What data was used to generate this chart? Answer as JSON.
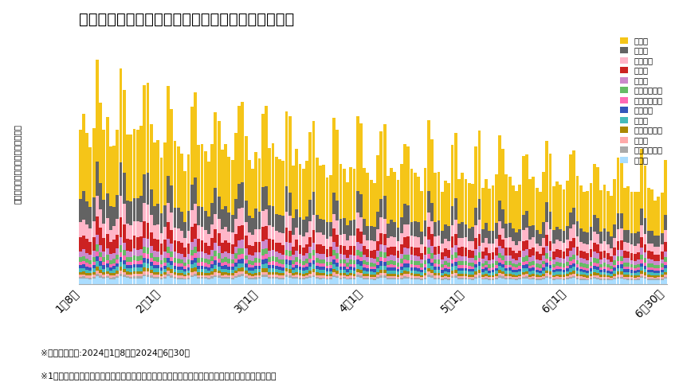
{
  "title": "輪島市・珠洲市居住推定者の石川県内の移動先推定",
  "ylabel": "石川県内市区町村別推定ユーザー数",
  "footnote1": "※集計対象期間:2024年1月8日〜2024年6月30日",
  "footnote2": "※1日の中で複数エリアに位置情報が存在する場合、滞在がもっとも長いエリアに割り振りを行った",
  "xtick_labels": [
    "1月8日",
    "2月1日",
    "3月1日",
    "4月1日",
    "5月1日",
    "6月1日",
    "6月30日"
  ],
  "xtick_positions": [
    0,
    24,
    53,
    84,
    114,
    144,
    173
  ],
  "series_names": [
    "金沢市",
    "白山市",
    "野々市市",
    "加賀市",
    "小松市",
    "河北郡津幡町",
    "鳳珠郡能登町",
    "かほく市",
    "七尾市",
    "河北郡内灘町",
    "能美市",
    "鳳珠郡穴水町",
    "その他"
  ],
  "series_colors": [
    "#F5C518",
    "#636363",
    "#FFB6C8",
    "#CC2222",
    "#CC88CC",
    "#66BB66",
    "#FF69B4",
    "#3355BB",
    "#44BBBB",
    "#AA8800",
    "#FFAAAA",
    "#AAAAAA",
    "#AADDFF"
  ],
  "background_color": "#ffffff",
  "n_days": 174
}
